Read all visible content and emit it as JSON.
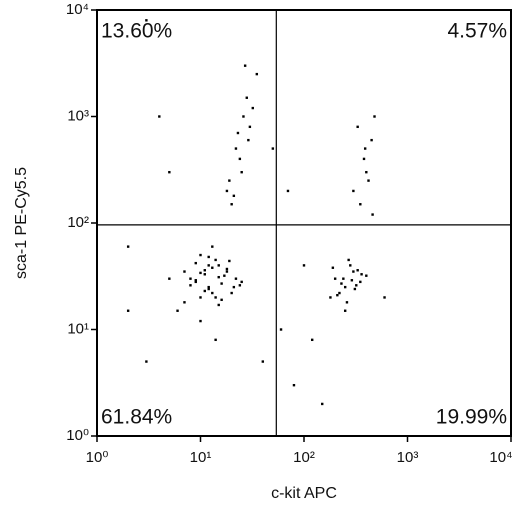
{
  "chart_data": {
    "type": "scatter",
    "xlabel": "c-kit APC",
    "ylabel": "sca-1 PE-Cy5.5",
    "log_x": true,
    "log_y": true,
    "xlim": [
      1,
      10000
    ],
    "ylim": [
      1,
      10000
    ],
    "xticks": [
      {
        "value": 1,
        "label": "10⁰"
      },
      {
        "value": 10,
        "label": "10¹"
      },
      {
        "value": 100,
        "label": "10²"
      },
      {
        "value": 1000,
        "label": "10³"
      },
      {
        "value": 10000,
        "label": "10⁴"
      }
    ],
    "yticks": [
      {
        "value": 1,
        "label": "10⁰"
      },
      {
        "value": 10,
        "label": "10¹"
      },
      {
        "value": 100,
        "label": "10²"
      },
      {
        "value": 1000,
        "label": "10³"
      },
      {
        "value": 10000,
        "label": "10⁴"
      }
    ],
    "quadrant_gate": {
      "x": 54,
      "y": 96
    },
    "annotations": [
      {
        "text": "13.60%",
        "position": "top-left"
      },
      {
        "text": "4.57%",
        "position": "top-right"
      },
      {
        "text": "61.84%",
        "position": "bottom-left"
      },
      {
        "text": "19.99%",
        "position": "bottom-right"
      }
    ],
    "series": [
      {
        "color": "#000000",
        "x": [
          8,
          12,
          15,
          10,
          18,
          9,
          14,
          20,
          11,
          7,
          13,
          16,
          22,
          6,
          10,
          12,
          17,
          9,
          25,
          14,
          11,
          8,
          19,
          13,
          15,
          10,
          7,
          21,
          12,
          16,
          9,
          14,
          18,
          11,
          5,
          13,
          24,
          10,
          15,
          12,
          200,
          250,
          300,
          180,
          350,
          280,
          220,
          400,
          260,
          320,
          190,
          240,
          310,
          270,
          230,
          360,
          210,
          290,
          330,
          250,
          20,
          25,
          30,
          18,
          28,
          22,
          35,
          26,
          24,
          19,
          32,
          27,
          21,
          29,
          23,
          350,
          400,
          450,
          300,
          480,
          380,
          420,
          330,
          460,
          390,
          3,
          2,
          40,
          60,
          100,
          5,
          80,
          150,
          600,
          4,
          50,
          3,
          120,
          70,
          2
        ],
        "values": [
          30,
          25,
          40,
          20,
          35,
          28,
          45,
          22,
          33,
          18,
          38,
          27,
          30,
          15,
          50,
          24,
          32,
          42,
          28,
          20,
          36,
          26,
          44,
          22,
          31,
          12,
          35,
          25,
          48,
          19,
          29,
          8,
          37,
          23,
          30,
          60,
          26,
          34,
          17,
          40,
          30,
          25,
          35,
          20,
          28,
          40,
          22,
          32,
          18,
          26,
          38,
          30,
          24,
          45,
          27,
          33,
          21,
          29,
          36,
          15,
          150,
          300,
          800,
          200,
          1500,
          500,
          2500,
          1000,
          400,
          250,
          1200,
          3000,
          180,
          600,
          700,
          150,
          300,
          600,
          200,
          1000,
          400,
          250,
          800,
          120,
          500,
          5,
          60,
          5,
          10,
          40,
          300,
          3,
          2,
          20,
          1000,
          500,
          8000,
          8,
          200,
          15
        ]
      }
    ]
  }
}
